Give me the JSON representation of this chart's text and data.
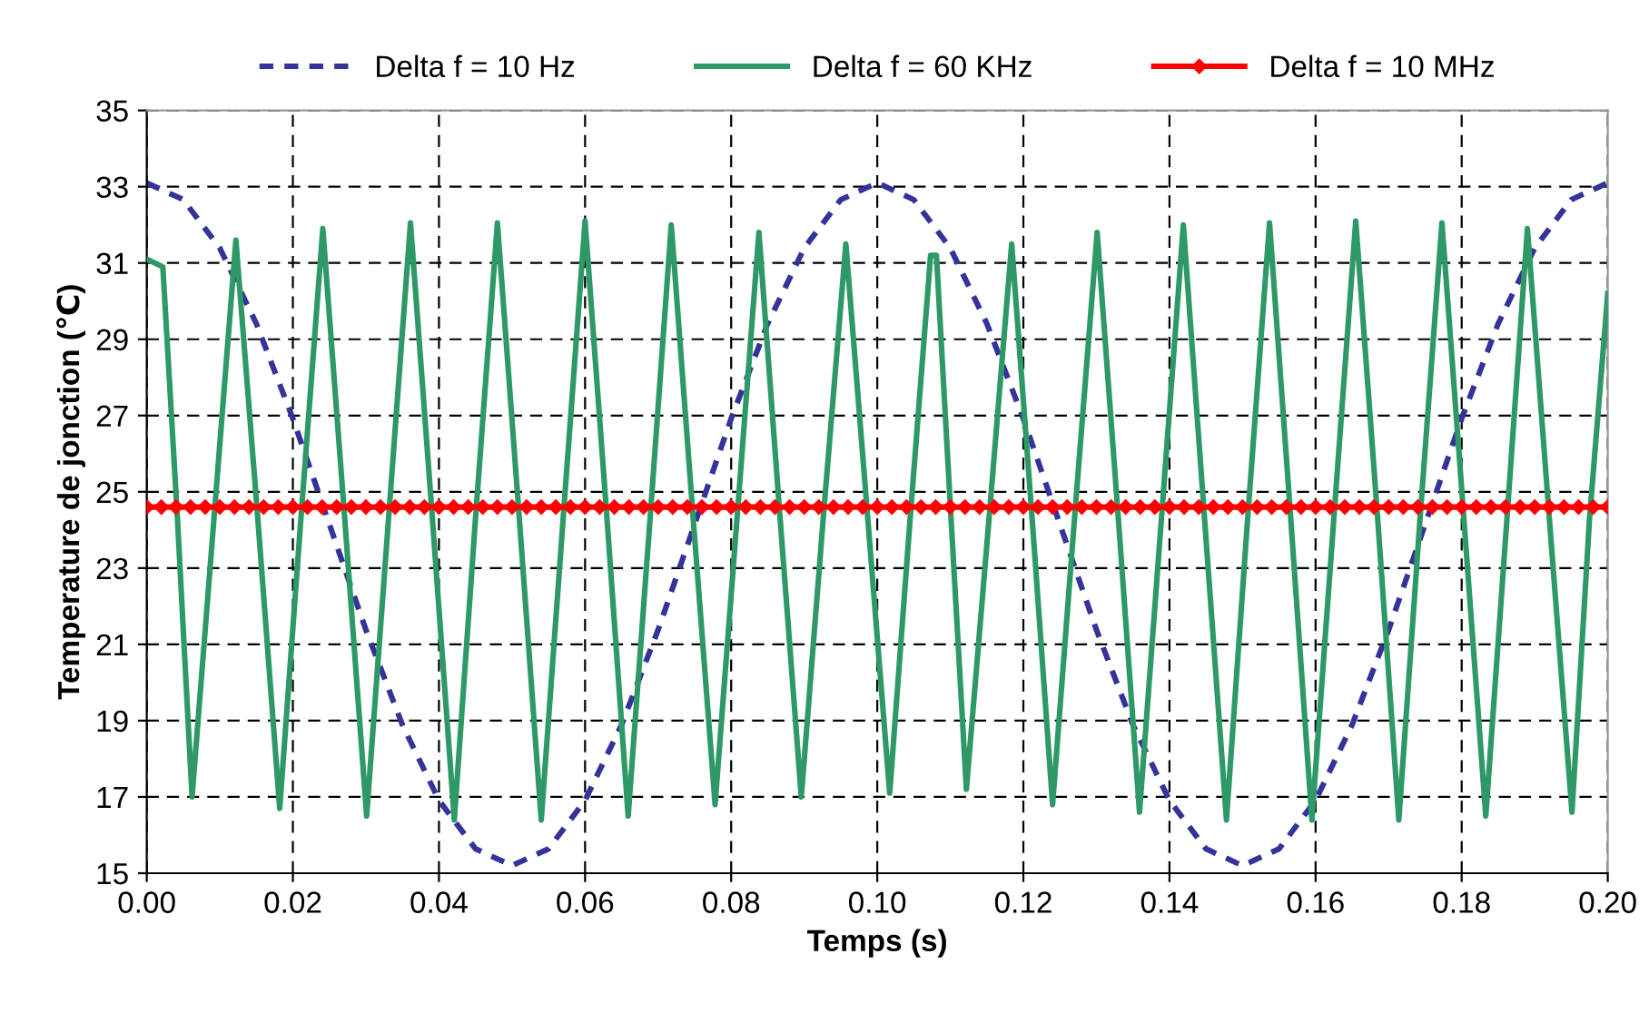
{
  "chart_data": {
    "type": "line",
    "xlabel": "Temps (s)",
    "ylabel": "Temperature de jonction (℃)",
    "xlim": [
      0,
      0.2
    ],
    "ylim": [
      15,
      35
    ],
    "xticks": [
      {
        "value": 0,
        "label": "0.00"
      },
      {
        "value": 0.02,
        "label": "0.02"
      },
      {
        "value": 0.04,
        "label": "0.04"
      },
      {
        "value": 0.06,
        "label": "0.06"
      },
      {
        "value": 0.08,
        "label": "0.08"
      },
      {
        "value": 0.1,
        "label": "0.10"
      },
      {
        "value": 0.12,
        "label": "0.12"
      },
      {
        "value": 0.14,
        "label": "0.14"
      },
      {
        "value": 0.16,
        "label": "0.16"
      },
      {
        "value": 0.18,
        "label": "0.18"
      },
      {
        "value": 0.2,
        "label": "0.20"
      }
    ],
    "yticks": [
      15,
      17,
      19,
      21,
      23,
      25,
      27,
      29,
      31,
      33,
      35
    ],
    "grid": true,
    "legend": "top",
    "marker": "none",
    "line_style": "solid",
    "series": [
      {
        "name": "Delta f = 10 Hz",
        "color": "#333399",
        "line_style": "dashed",
        "x": [
          0,
          0.005,
          0.01,
          0.015,
          0.02,
          0.025,
          0.03,
          0.035,
          0.04,
          0.045,
          0.05,
          0.055,
          0.06,
          0.065,
          0.07,
          0.075,
          0.08,
          0.085,
          0.09,
          0.095,
          0.1,
          0.105,
          0.11,
          0.115,
          0.12,
          0.125,
          0.13,
          0.135,
          0.14,
          0.145,
          0.15,
          0.155,
          0.16,
          0.165,
          0.17,
          0.175,
          0.18,
          0.185,
          0.19,
          0.195,
          0.2
        ],
        "values": [
          33.1,
          32.66,
          31.39,
          29.41,
          26.92,
          24.15,
          21.38,
          18.89,
          16.91,
          15.64,
          15.2,
          15.64,
          16.91,
          18.89,
          21.38,
          24.15,
          26.92,
          29.41,
          31.39,
          32.66,
          33.1,
          32.66,
          31.39,
          29.41,
          26.92,
          24.15,
          21.38,
          18.89,
          16.91,
          15.64,
          15.2,
          15.64,
          16.91,
          18.89,
          21.38,
          24.15,
          26.92,
          29.41,
          31.39,
          32.66,
          33.1
        ]
      },
      {
        "name": "Delta f = 60 KHz",
        "color": "#2e9966",
        "x": [
          0,
          0.0022,
          0.0042,
          0.0062,
          0.0092,
          0.0122,
          0.0152,
          0.0182,
          0.0211,
          0.0241,
          0.0271,
          0.0301,
          0.0331,
          0.0361,
          0.0391,
          0.0421,
          0.045,
          0.048,
          0.051,
          0.054,
          0.057,
          0.06,
          0.063,
          0.0659,
          0.0689,
          0.0718,
          0.0748,
          0.0778,
          0.0808,
          0.0838,
          0.0867,
          0.0896,
          0.0926,
          0.0957,
          0.0987,
          0.1017,
          0.1045,
          0.1073,
          0.1081,
          0.1101,
          0.1122,
          0.1153,
          0.1184,
          0.1212,
          0.124,
          0.127,
          0.1301,
          0.133,
          0.1359,
          0.1389,
          0.1419,
          0.1448,
          0.1478,
          0.1507,
          0.1537,
          0.1566,
          0.1595,
          0.1625,
          0.1655,
          0.1685,
          0.1714,
          0.1743,
          0.1773,
          0.1803,
          0.1833,
          0.1862,
          0.189,
          0.192,
          0.1951,
          0.1975,
          0.2
        ],
        "values": [
          31.1,
          30.9,
          24.3,
          17.0,
          24.3,
          31.6,
          24.3,
          16.7,
          24.3,
          31.9,
          24.3,
          16.5,
          24.3,
          32.05,
          24.3,
          16.4,
          24.3,
          32.05,
          24.3,
          16.4,
          24.3,
          32.1,
          24.3,
          16.5,
          24.3,
          32.0,
          24.3,
          16.8,
          24.3,
          31.8,
          24.3,
          17.0,
          24.3,
          31.5,
          24.3,
          17.1,
          24.3,
          31.2,
          31.2,
          24.3,
          17.2,
          24.3,
          31.5,
          24.3,
          16.8,
          24.3,
          31.8,
          24.3,
          16.6,
          24.3,
          32.0,
          24.3,
          16.4,
          24.3,
          32.05,
          24.3,
          16.4,
          24.3,
          32.1,
          24.3,
          16.4,
          24.3,
          32.05,
          24.3,
          16.5,
          24.3,
          31.9,
          24.3,
          16.6,
          24.3,
          30.2
        ]
      },
      {
        "name": "Delta f = 10 MHz",
        "color": "#ff0000",
        "marker": "diamond",
        "x": [
          0,
          0.002,
          0.004,
          0.006,
          0.008,
          0.01,
          0.012,
          0.014,
          0.016,
          0.018,
          0.02,
          0.022,
          0.024,
          0.026,
          0.028,
          0.03,
          0.032,
          0.034,
          0.036,
          0.038,
          0.04,
          0.042,
          0.044,
          0.046,
          0.048,
          0.05,
          0.052,
          0.054,
          0.056,
          0.058,
          0.06,
          0.062,
          0.064,
          0.066,
          0.068,
          0.07,
          0.072,
          0.074,
          0.076,
          0.078,
          0.08,
          0.082,
          0.084,
          0.086,
          0.088,
          0.09,
          0.092,
          0.094,
          0.096,
          0.098,
          0.1,
          0.102,
          0.104,
          0.106,
          0.108,
          0.11,
          0.112,
          0.114,
          0.116,
          0.118,
          0.12,
          0.122,
          0.124,
          0.126,
          0.128,
          0.13,
          0.132,
          0.134,
          0.136,
          0.138,
          0.14,
          0.142,
          0.144,
          0.146,
          0.148,
          0.15,
          0.152,
          0.154,
          0.156,
          0.158,
          0.16,
          0.162,
          0.164,
          0.166,
          0.168,
          0.17,
          0.172,
          0.174,
          0.176,
          0.178,
          0.18,
          0.182,
          0.184,
          0.186,
          0.188,
          0.19,
          0.192,
          0.194,
          0.196,
          0.198,
          0.2
        ],
        "values": [
          24.6,
          24.6,
          24.6,
          24.6,
          24.6,
          24.6,
          24.6,
          24.6,
          24.6,
          24.6,
          24.6,
          24.6,
          24.6,
          24.6,
          24.6,
          24.6,
          24.6,
          24.6,
          24.6,
          24.6,
          24.6,
          24.6,
          24.6,
          24.6,
          24.6,
          24.6,
          24.6,
          24.6,
          24.6,
          24.6,
          24.6,
          24.6,
          24.6,
          24.6,
          24.6,
          24.6,
          24.6,
          24.6,
          24.6,
          24.6,
          24.6,
          24.6,
          24.6,
          24.6,
          24.6,
          24.6,
          24.6,
          24.6,
          24.6,
          24.6,
          24.6,
          24.6,
          24.6,
          24.6,
          24.6,
          24.6,
          24.6,
          24.6,
          24.6,
          24.6,
          24.6,
          24.6,
          24.6,
          24.6,
          24.6,
          24.6,
          24.6,
          24.6,
          24.6,
          24.6,
          24.6,
          24.6,
          24.6,
          24.6,
          24.6,
          24.6,
          24.6,
          24.6,
          24.6,
          24.6,
          24.6,
          24.6,
          24.6,
          24.6,
          24.6,
          24.6,
          24.6,
          24.6,
          24.6,
          24.6,
          24.6,
          24.6,
          24.6,
          24.6,
          24.6,
          24.6,
          24.6,
          24.6,
          24.6,
          24.6,
          24.6
        ]
      }
    ]
  }
}
